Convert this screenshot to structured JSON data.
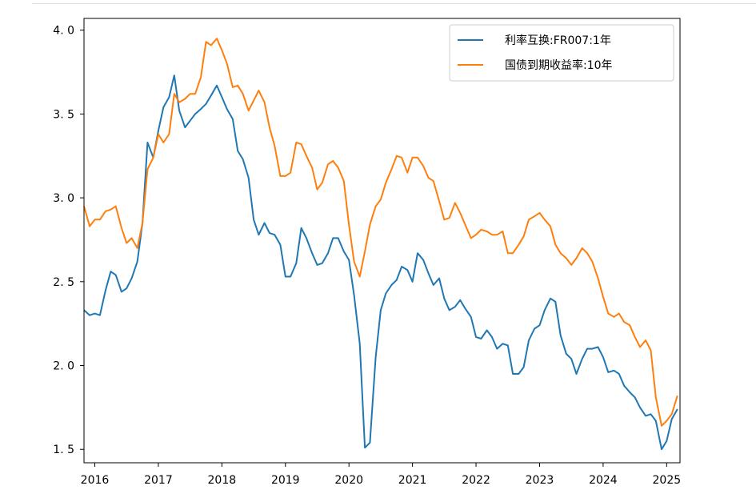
{
  "chart_data": {
    "type": "line",
    "title": "",
    "xlabel": "",
    "ylabel": "",
    "xlim": [
      2015.83,
      2025.21
    ],
    "ylim": [
      1.42,
      4.07
    ],
    "grid": false,
    "legend_position": "top-right",
    "x_ticks": [
      {
        "value": 2016,
        "label": "2016"
      },
      {
        "value": 2017,
        "label": "2017"
      },
      {
        "value": 2018,
        "label": "2018"
      },
      {
        "value": 2019,
        "label": "2019"
      },
      {
        "value": 2020,
        "label": "2020"
      },
      {
        "value": 2021,
        "label": "2021"
      },
      {
        "value": 2022,
        "label": "2022"
      },
      {
        "value": 2023,
        "label": "2023"
      },
      {
        "value": 2024,
        "label": "2024"
      },
      {
        "value": 2025,
        "label": "2025"
      }
    ],
    "y_ticks": [
      {
        "value": 1.5,
        "label": "1. 5"
      },
      {
        "value": 2.0,
        "label": "2. 0"
      },
      {
        "value": 2.5,
        "label": "2. 5"
      },
      {
        "value": 3.0,
        "label": "3. 0"
      },
      {
        "value": 3.5,
        "label": "3. 5"
      },
      {
        "value": 4.0,
        "label": "4. 0"
      }
    ],
    "series": [
      {
        "name": "利率互换:FR007:1年",
        "color": "#1f77b4",
        "x": [
          2015.83,
          2015.92,
          2016.0,
          2016.08,
          2016.17,
          2016.25,
          2016.33,
          2016.42,
          2016.5,
          2016.58,
          2016.67,
          2016.75,
          2016.83,
          2016.92,
          2017.0,
          2017.08,
          2017.17,
          2017.25,
          2017.33,
          2017.42,
          2017.5,
          2017.58,
          2017.67,
          2017.75,
          2017.83,
          2017.92,
          2018.0,
          2018.08,
          2018.17,
          2018.25,
          2018.33,
          2018.42,
          2018.5,
          2018.58,
          2018.67,
          2018.75,
          2018.83,
          2018.92,
          2019.0,
          2019.08,
          2019.17,
          2019.25,
          2019.33,
          2019.42,
          2019.5,
          2019.58,
          2019.67,
          2019.75,
          2019.83,
          2019.92,
          2020.0,
          2020.08,
          2020.17,
          2020.25,
          2020.33,
          2020.42,
          2020.5,
          2020.58,
          2020.67,
          2020.75,
          2020.83,
          2020.92,
          2021.0,
          2021.08,
          2021.17,
          2021.25,
          2021.33,
          2021.42,
          2021.5,
          2021.58,
          2021.67,
          2021.75,
          2021.83,
          2021.92,
          2022.0,
          2022.08,
          2022.17,
          2022.25,
          2022.33,
          2022.42,
          2022.5,
          2022.58,
          2022.67,
          2022.75,
          2022.83,
          2022.92,
          2023.0,
          2023.08,
          2023.17,
          2023.25,
          2023.33,
          2023.42,
          2023.5,
          2023.58,
          2023.67,
          2023.75,
          2023.83,
          2023.92,
          2024.0,
          2024.08,
          2024.17,
          2024.25,
          2024.33,
          2024.42,
          2024.5,
          2024.58,
          2024.67,
          2024.75,
          2024.83,
          2024.92,
          2025.0,
          2025.08,
          2025.17
        ],
        "values": [
          2.33,
          2.3,
          2.31,
          2.3,
          2.45,
          2.56,
          2.54,
          2.44,
          2.46,
          2.52,
          2.62,
          2.85,
          3.33,
          3.24,
          3.4,
          3.54,
          3.6,
          3.73,
          3.52,
          3.42,
          3.46,
          3.5,
          3.53,
          3.56,
          3.61,
          3.67,
          3.6,
          3.53,
          3.47,
          3.28,
          3.23,
          3.12,
          2.87,
          2.78,
          2.85,
          2.79,
          2.78,
          2.72,
          2.53,
          2.53,
          2.61,
          2.82,
          2.76,
          2.67,
          2.6,
          2.61,
          2.67,
          2.76,
          2.76,
          2.68,
          2.63,
          2.42,
          2.13,
          1.51,
          1.54,
          2.05,
          2.33,
          2.43,
          2.48,
          2.51,
          2.59,
          2.57,
          2.5,
          2.67,
          2.63,
          2.55,
          2.48,
          2.52,
          2.4,
          2.33,
          2.35,
          2.39,
          2.34,
          2.29,
          2.17,
          2.16,
          2.21,
          2.17,
          2.1,
          2.13,
          2.12,
          1.95,
          1.95,
          1.99,
          2.15,
          2.22,
          2.24,
          2.33,
          2.4,
          2.38,
          2.18,
          2.07,
          2.04,
          1.95,
          2.04,
          2.1,
          2.1,
          2.11,
          2.05,
          1.96,
          1.97,
          1.95,
          1.88,
          1.84,
          1.81,
          1.75,
          1.7,
          1.71,
          1.67,
          1.5,
          1.55,
          1.68,
          1.74
        ]
      },
      {
        "name": "国债到期收益率:10年",
        "color": "#ff7f0e",
        "x": [
          2015.83,
          2015.92,
          2016.0,
          2016.08,
          2016.17,
          2016.25,
          2016.33,
          2016.42,
          2016.5,
          2016.58,
          2016.67,
          2016.75,
          2016.83,
          2016.92,
          2017.0,
          2017.08,
          2017.17,
          2017.25,
          2017.33,
          2017.42,
          2017.5,
          2017.58,
          2017.67,
          2017.75,
          2017.83,
          2017.92,
          2018.0,
          2018.08,
          2018.17,
          2018.25,
          2018.33,
          2018.42,
          2018.5,
          2018.58,
          2018.67,
          2018.75,
          2018.83,
          2018.92,
          2019.0,
          2019.08,
          2019.17,
          2019.25,
          2019.33,
          2019.42,
          2019.5,
          2019.58,
          2019.67,
          2019.75,
          2019.83,
          2019.92,
          2020.0,
          2020.08,
          2020.17,
          2020.25,
          2020.33,
          2020.42,
          2020.5,
          2020.58,
          2020.67,
          2020.75,
          2020.83,
          2020.92,
          2021.0,
          2021.08,
          2021.17,
          2021.25,
          2021.33,
          2021.42,
          2021.5,
          2021.58,
          2021.67,
          2021.75,
          2021.83,
          2021.92,
          2022.0,
          2022.08,
          2022.17,
          2022.25,
          2022.33,
          2022.42,
          2022.5,
          2022.58,
          2022.67,
          2022.75,
          2022.83,
          2022.92,
          2023.0,
          2023.08,
          2023.17,
          2023.25,
          2023.33,
          2023.42,
          2023.5,
          2023.58,
          2023.67,
          2023.75,
          2023.83,
          2023.92,
          2024.0,
          2024.08,
          2024.17,
          2024.25,
          2024.33,
          2024.42,
          2024.5,
          2024.58,
          2024.67,
          2024.75,
          2024.83,
          2024.92,
          2025.0,
          2025.08,
          2025.17
        ],
        "values": [
          2.95,
          2.83,
          2.87,
          2.87,
          2.92,
          2.93,
          2.95,
          2.82,
          2.73,
          2.76,
          2.7,
          2.85,
          3.17,
          3.24,
          3.38,
          3.33,
          3.38,
          3.62,
          3.57,
          3.59,
          3.62,
          3.62,
          3.72,
          3.93,
          3.91,
          3.95,
          3.88,
          3.8,
          3.66,
          3.67,
          3.62,
          3.52,
          3.58,
          3.64,
          3.57,
          3.42,
          3.31,
          3.13,
          3.13,
          3.15,
          3.33,
          3.32,
          3.25,
          3.18,
          3.05,
          3.09,
          3.2,
          3.22,
          3.18,
          3.1,
          2.84,
          2.62,
          2.53,
          2.68,
          2.84,
          2.95,
          2.99,
          3.09,
          3.17,
          3.25,
          3.24,
          3.15,
          3.24,
          3.24,
          3.19,
          3.12,
          3.1,
          2.98,
          2.87,
          2.88,
          2.97,
          2.91,
          2.84,
          2.76,
          2.78,
          2.81,
          2.8,
          2.78,
          2.78,
          2.8,
          2.67,
          2.67,
          2.72,
          2.77,
          2.87,
          2.89,
          2.91,
          2.87,
          2.83,
          2.72,
          2.67,
          2.64,
          2.6,
          2.64,
          2.7,
          2.67,
          2.62,
          2.52,
          2.41,
          2.31,
          2.29,
          2.31,
          2.26,
          2.24,
          2.17,
          2.11,
          2.15,
          2.09,
          1.81,
          1.64,
          1.67,
          1.71,
          1.82
        ]
      }
    ]
  }
}
